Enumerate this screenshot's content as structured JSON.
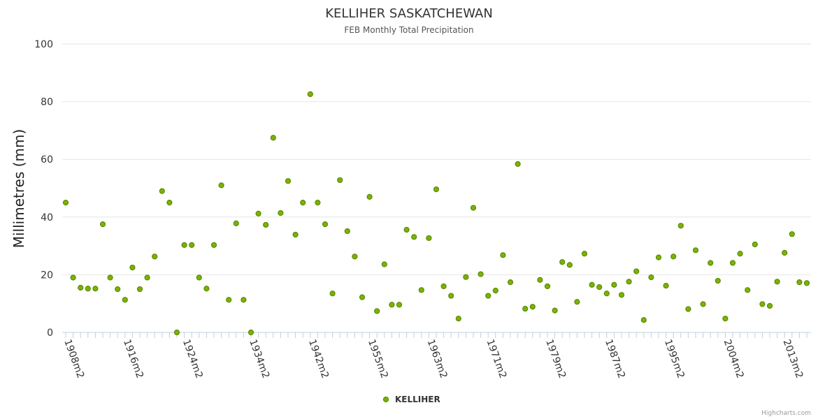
{
  "chart_data": {
    "type": "scatter",
    "title": "KELLIHER SASKATCHEWAN",
    "subtitle": "FEB Monthly Total Precipitation",
    "ylabel": "Millimetres (mm)",
    "xlabel": "",
    "ylim": [
      0,
      100
    ],
    "yticks": [
      0,
      20,
      40,
      60,
      80,
      100
    ],
    "xtick_labels": [
      "1908m2",
      "1916m2",
      "1924m2",
      "1934m2",
      "1942m2",
      "1955m2",
      "1963m2",
      "1971m2",
      "1979m2",
      "1987m2",
      "1995m2",
      "2004m2",
      "2013m2"
    ],
    "xtick_indices": [
      0,
      8,
      16,
      25,
      33,
      41,
      49,
      57,
      65,
      73,
      81,
      89,
      97
    ],
    "legend": "KELLIHER",
    "color": "#7cb300",
    "series": [
      {
        "name": "KELLIHER",
        "values": [
          45,
          19,
          15.5,
          15.2,
          15.2,
          37.5,
          19,
          15,
          11.3,
          22.5,
          15,
          19,
          26.3,
          49,
          45,
          0,
          30.3,
          30.3,
          19,
          15.2,
          30.3,
          51,
          11.3,
          37.8,
          11.3,
          0,
          41.2,
          37.3,
          67.5,
          41.4,
          52.5,
          33.9,
          45,
          82.6,
          45,
          37.5,
          13.5,
          52.8,
          35.1,
          26.3,
          12.2,
          47,
          7.4,
          23.6,
          9.6,
          9.6,
          35.6,
          33.1,
          14.7,
          32.7,
          49.6,
          16,
          12.7,
          4.8,
          19.2,
          43.2,
          20.2,
          12.7,
          14.5,
          26.8,
          17.4,
          58.4,
          8.2,
          8.9,
          18.2,
          16,
          7.6,
          24.4,
          23.4,
          10.6,
          27.3,
          16.5,
          15.7,
          13.5,
          16.5,
          13,
          17.6,
          21.2,
          4.3,
          19.1,
          26,
          16.2,
          26.3,
          37,
          8.1,
          28.5,
          9.8,
          24.1,
          17.9,
          4.8,
          24.1,
          27.3,
          14.7,
          30.5,
          9.8,
          9.2,
          17.6,
          27.6,
          34.1,
          17.4,
          17.1
        ]
      }
    ],
    "credits": "Highcharts.com"
  }
}
